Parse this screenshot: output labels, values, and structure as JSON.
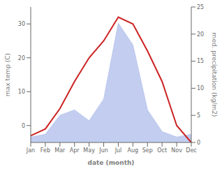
{
  "chart_data": {
    "type": "line",
    "categories": [
      "Jan",
      "Feb",
      "Mar",
      "Apr",
      "May",
      "Jun",
      "Jul",
      "Aug",
      "Sep",
      "Oct",
      "Nov",
      "Dec"
    ],
    "xlabel": "date (month)",
    "ylabel": "max temp (C)",
    "y2label": "med. precipitation (kg/m2)",
    "series": [
      {
        "type": "area",
        "axis": "y2",
        "color": "#bbc8ee",
        "values": [
          1,
          1.5,
          5,
          6,
          4,
          8,
          22,
          18,
          6,
          2,
          1,
          1.5
        ]
      },
      {
        "type": "line",
        "color": "#cc2222",
        "values": [
          -3,
          -1,
          5,
          13,
          20,
          25,
          32,
          30,
          22,
          13,
          0,
          -5
        ]
      }
    ],
    "ylim": [
      -5,
      35
    ],
    "yticks": [
      0,
      10,
      20,
      30
    ],
    "y2lim": [
      0,
      25
    ],
    "y2ticks": [
      0,
      5,
      10,
      15,
      20,
      25
    ],
    "grid": false
  }
}
